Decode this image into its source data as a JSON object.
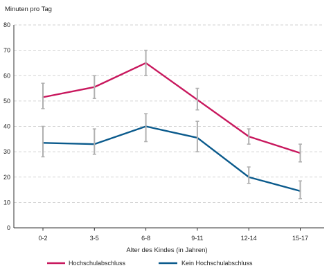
{
  "chart_data": {
    "type": "line",
    "ylabel": "Minuten pro Tag",
    "xlabel": "Alter des Kindes (in Jahren)",
    "ylim": [
      0,
      80
    ],
    "yticks": [
      0,
      10,
      20,
      30,
      40,
      50,
      60,
      70,
      80
    ],
    "categories": [
      "0-2",
      "3-5",
      "6-8",
      "9-11",
      "12-14",
      "15-17"
    ],
    "grid": "horizontal-dashed",
    "legend_position": "bottom",
    "series": [
      {
        "name": "Hochschulabschluss",
        "color": "#c8175d",
        "values": [
          51.5,
          55.5,
          65,
          50.5,
          36,
          29.5
        ],
        "error_low": [
          47,
          51,
          60,
          46.5,
          33,
          26
        ],
        "error_high": [
          57,
          60,
          70,
          55,
          39,
          33
        ]
      },
      {
        "name": "Kein Hochschulabschluss",
        "color": "#0a5a8c",
        "values": [
          33.5,
          33,
          40,
          35.5,
          20,
          14.5
        ],
        "error_low": [
          28,
          29,
          34,
          30,
          17.5,
          11.5
        ],
        "error_high": [
          40,
          39,
          45,
          42,
          24,
          18.5
        ]
      }
    ],
    "errorbar_color": "#b0b0b0"
  }
}
